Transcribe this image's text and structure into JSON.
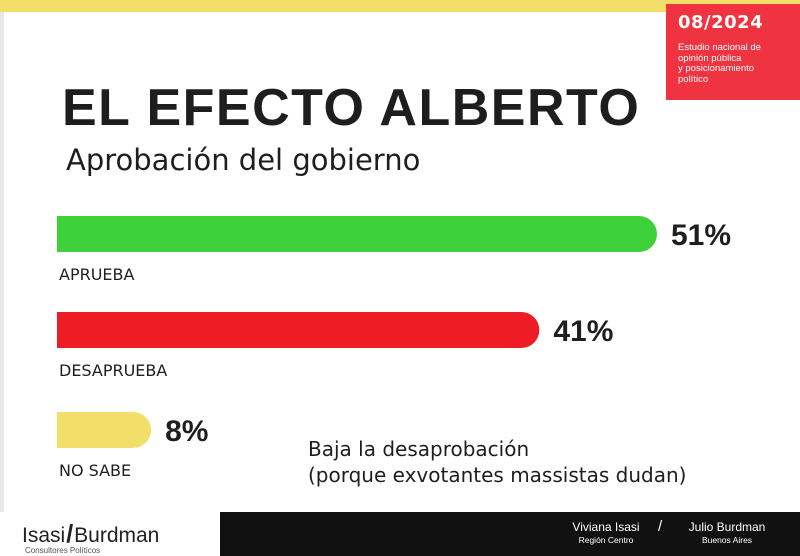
{
  "header": {
    "date_label": "08/2024",
    "date_desc": "Estudio nacional de\nopinión pública\ny posicionamiento\npolítico",
    "title": "EL EFECTO ALBERTO",
    "subtitle": "Aprobación del gobierno"
  },
  "chart_data": {
    "type": "bar",
    "orientation": "horizontal",
    "categories": [
      "APRUEBA",
      "DESAPRUEBA",
      "NO SABE"
    ],
    "values": [
      51,
      41,
      8
    ],
    "value_labels": [
      "51%",
      "41%",
      "8%"
    ],
    "colors": [
      "#3fd13a",
      "#ee1c25",
      "#f2df6a"
    ],
    "unit": "%",
    "xlim": [
      0,
      51
    ]
  },
  "note": {
    "line1": "Baja la desaprobación",
    "line2": "(porque exvotantes massistas dudan)"
  },
  "footer": {
    "brand_left": "Isasi",
    "brand_sep": "/",
    "brand_right": "Burdman",
    "brand_sub": "Consultores Políticos",
    "person1_name": "Viviana Isasi",
    "person1_region": "Región Centro",
    "separator": "/",
    "person2_name": "Julio Burdman",
    "person2_region": "Buenos Aires"
  }
}
